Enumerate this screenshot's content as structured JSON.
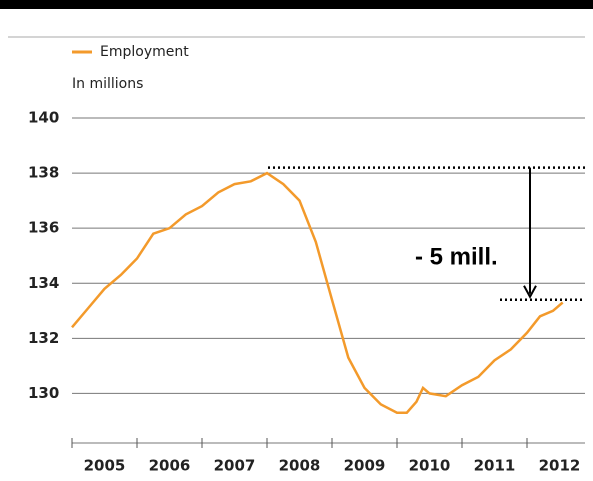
{
  "chart_data": {
    "type": "line",
    "y_label": "In millions",
    "series": [
      {
        "name": "Employment",
        "color": "#f39a2b",
        "x": [
          2005.0,
          2005.25,
          2005.5,
          2005.75,
          2006.0,
          2006.25,
          2006.5,
          2006.75,
          2007.0,
          2007.25,
          2007.5,
          2007.75,
          2008.0,
          2008.25,
          2008.5,
          2008.75,
          2009.0,
          2009.25,
          2009.5,
          2009.75,
          2010.0,
          2010.15,
          2010.3,
          2010.4,
          2010.5,
          2010.75,
          2011.0,
          2011.25,
          2011.5,
          2011.75,
          2012.0,
          2012.2,
          2012.4,
          2012.55
        ],
        "values": [
          132.4,
          133.1,
          133.8,
          134.3,
          134.9,
          135.8,
          136.0,
          136.5,
          136.8,
          137.3,
          137.6,
          137.7,
          138.0,
          137.6,
          137.0,
          135.5,
          133.4,
          131.3,
          130.2,
          129.6,
          129.3,
          129.3,
          129.7,
          130.2,
          130.0,
          129.9,
          130.3,
          130.6,
          131.2,
          131.6,
          132.2,
          132.8,
          133.0,
          133.3
        ]
      }
    ],
    "xlim": [
      2005,
      2013
    ],
    "xticks": [
      {
        "value": 2005,
        "label": "2005"
      },
      {
        "value": 2006,
        "label": "2006"
      },
      {
        "value": 2007,
        "label": "2007"
      },
      {
        "value": 2008,
        "label": "2008"
      },
      {
        "value": 2009,
        "label": "2009"
      },
      {
        "value": 2010,
        "label": "2010"
      },
      {
        "value": 2011,
        "label": "2011"
      },
      {
        "value": 2012,
        "label": "2012"
      }
    ],
    "ylim": [
      128.2,
      140
    ],
    "yticks": [
      130,
      132,
      134,
      136,
      138,
      140
    ],
    "grid": true,
    "annotation": {
      "text": "- 5 mill.",
      "from": 138.2,
      "to": 133.4
    }
  }
}
